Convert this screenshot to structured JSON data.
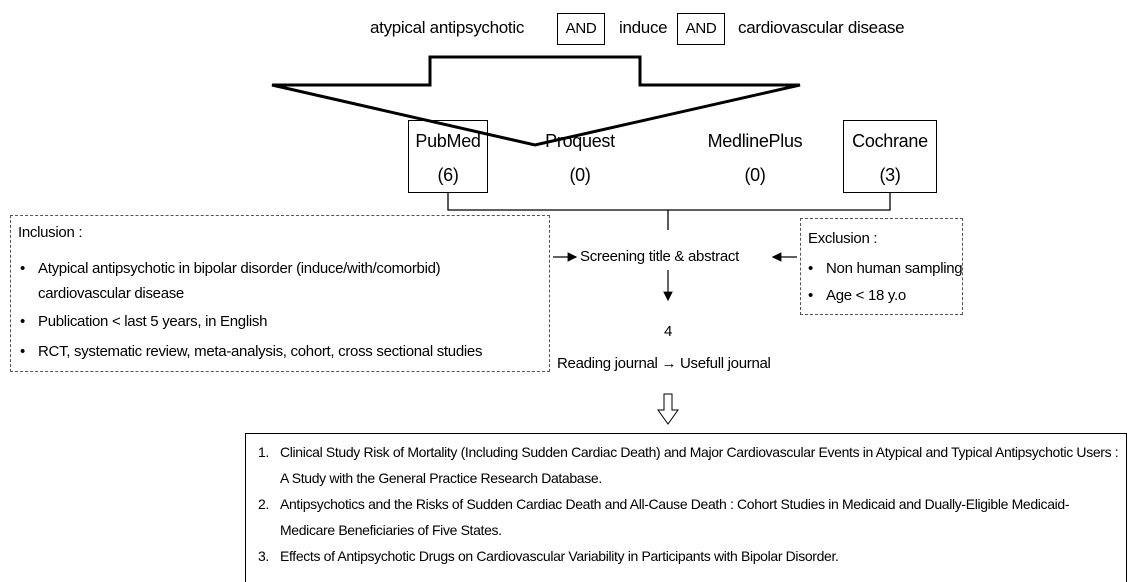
{
  "search": {
    "terms": [
      "atypical antipsychotic",
      "AND",
      "induce",
      "AND",
      "cardiovascular disease"
    ]
  },
  "databases": [
    {
      "name": "PubMed",
      "count": "(6)"
    },
    {
      "name": "Proquest",
      "count": "(0)"
    },
    {
      "name": "MedlinePlus",
      "count": "(0)"
    },
    {
      "name": "Cochrane",
      "count": "(3)"
    }
  ],
  "inclusion": {
    "title": "Inclusion :",
    "items": [
      "Atypical antipsychotic in bipolar disorder (induce/with/comorbid) cardiovascular disease",
      "Publication < last 5 years, in English",
      "RCT, systematic review, meta-analysis, cohort, cross sectional studies"
    ]
  },
  "screening": "Screening title & abstract",
  "exclusion": {
    "title": "Exclusion :",
    "items": [
      "Non human sampling",
      "Age < 18 y.o"
    ]
  },
  "screened_count": 4,
  "reading": "Reading journal → Usefull journal",
  "results": [
    {
      "number": "1.",
      "text": "Clinical Study Risk of Mortality (Including Sudden Cardiac Death) and Major Cardiovascular Events in Atypical and Typical Antipsychotic Users : A Study with the General Practice Research Database."
    },
    {
      "number": "2.",
      "text": "Antipsychotics and the Risks of Sudden Cardiac Death and All-Cause Death : Cohort Studies in Medicaid and Dually-Eligible Medicaid-Medicare Beneficiaries of Five States."
    },
    {
      "number": "3.",
      "text": "Effects of Antipsychotic Drugs on Cardiovascular Variability in Participants with Bipolar Disorder."
    }
  ]
}
